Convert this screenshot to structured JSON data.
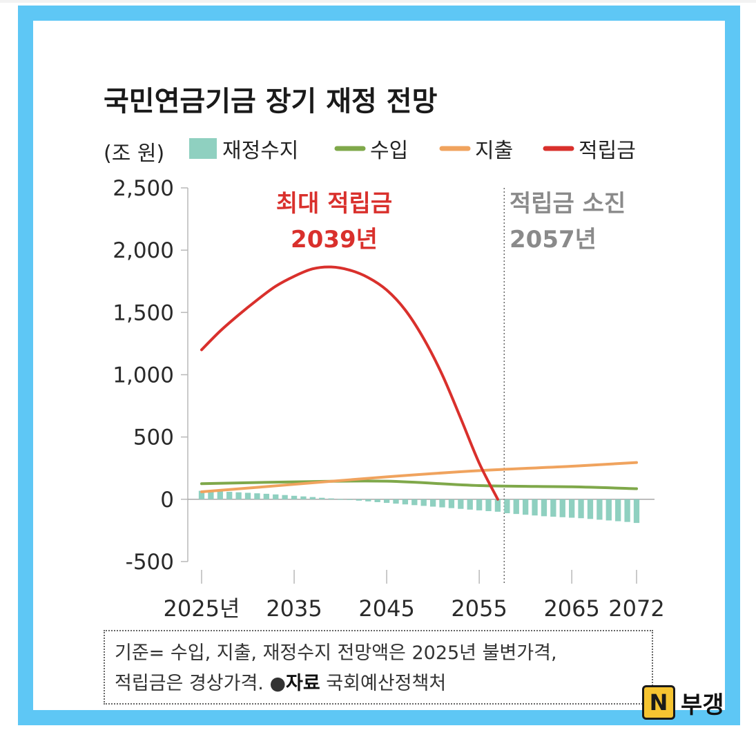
{
  "colors": {
    "frame": "#5ec7f5",
    "balance": "#8fd0c0",
    "revenue": "#7fa84a",
    "expenditure": "#f0a35e",
    "reserve": "#d9302c",
    "annotation_gray": "#8a8a8a"
  },
  "footnote": {
    "line1": "기준= 수입, 지출, 재정수지 전망액은 2025년 불변가격,",
    "line2_a": "적립금은 경상가격. ",
    "line2_dot": "●",
    "line2_src": "자료",
    "line2_b": " 국회예산정책처"
  },
  "badge": {
    "letter": "N",
    "name": "부갱"
  },
  "chart_data": {
    "type": "line",
    "title": "국민연금기금 장기 재정 전망",
    "ylabel": "(조 원)",
    "xlim": [
      2024,
      2073
    ],
    "ylim": [
      -500,
      2500
    ],
    "yticks": [
      2500,
      2000,
      1500,
      1000,
      500,
      0,
      -500
    ],
    "ytick_labels": [
      "2,500",
      "2,000",
      "1,500",
      "1,000",
      "500",
      "0",
      "-500"
    ],
    "xticks": [
      2025,
      2035,
      2045,
      2055,
      2065,
      2072
    ],
    "xtick_labels": [
      "2025년",
      "2035",
      "2045",
      "2055",
      "2065",
      "2072"
    ],
    "legend": [
      "재정수지",
      "수입",
      "지출",
      "적립금"
    ],
    "series": [
      {
        "name": "재정수지",
        "kind": "bar",
        "x": [
          2025,
          2026,
          2027,
          2028,
          2029,
          2030,
          2031,
          2032,
          2033,
          2034,
          2035,
          2036,
          2037,
          2038,
          2039,
          2040,
          2041,
          2042,
          2043,
          2044,
          2045,
          2046,
          2047,
          2048,
          2049,
          2050,
          2051,
          2052,
          2053,
          2054,
          2055,
          2056,
          2057,
          2058,
          2059,
          2060,
          2061,
          2062,
          2063,
          2064,
          2065,
          2066,
          2067,
          2068,
          2069,
          2070,
          2071,
          2072
        ],
        "values": [
          68,
          67,
          64,
          60,
          56,
          52,
          48,
          44,
          39,
          34,
          28,
          23,
          18,
          12,
          7,
          1,
          -5,
          -11,
          -17,
          -23,
          -29,
          -35,
          -41,
          -47,
          -53,
          -59,
          -65,
          -71,
          -77,
          -83,
          -89,
          -95,
          -100,
          -112,
          -118,
          -124,
          -130,
          -136,
          -140,
          -144,
          -148,
          -152,
          -158,
          -164,
          -170,
          -176,
          -182,
          -190
        ]
      },
      {
        "name": "수입",
        "kind": "line",
        "x": [
          2025,
          2035,
          2045,
          2055,
          2065,
          2072
        ],
        "values": [
          125,
          140,
          145,
          110,
          100,
          85
        ]
      },
      {
        "name": "지출",
        "kind": "line",
        "x": [
          2025,
          2035,
          2045,
          2055,
          2065,
          2072
        ],
        "values": [
          60,
          120,
          180,
          230,
          265,
          295
        ]
      },
      {
        "name": "적립금",
        "kind": "line",
        "x": [
          2025,
          2027,
          2029,
          2031,
          2033,
          2035,
          2037,
          2039,
          2041,
          2043,
          2045,
          2047,
          2049,
          2051,
          2053,
          2055,
          2057
        ],
        "values": [
          1200,
          1350,
          1480,
          1600,
          1710,
          1790,
          1850,
          1865,
          1840,
          1780,
          1680,
          1520,
          1290,
          1000,
          650,
          290,
          0
        ]
      }
    ],
    "annotations": [
      {
        "lines": [
          "최대 적립금",
          "2039년"
        ],
        "x": 2039,
        "color": "#d9302c"
      },
      {
        "lines": [
          "적립금 소진",
          "2057년"
        ],
        "x": 2057,
        "color": "#8a8a8a"
      }
    ],
    "depletion_line_x": 2057.7
  }
}
